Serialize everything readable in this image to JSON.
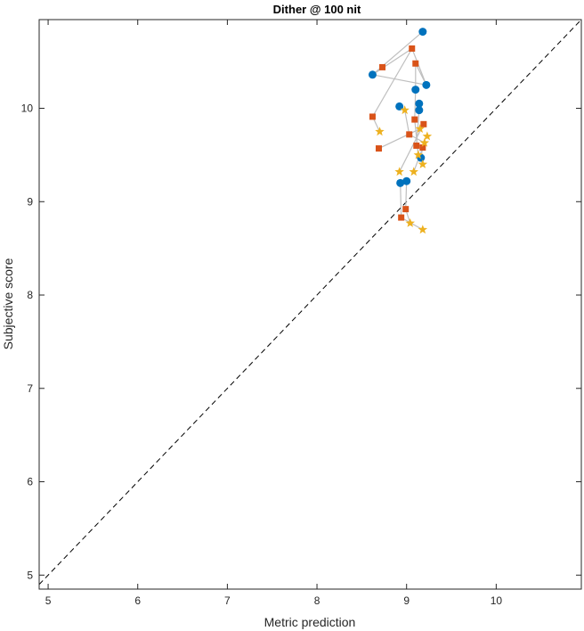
{
  "chart_data": {
    "type": "scatter",
    "title": "Dither @ 100 nit",
    "xlabel": "Metric prediction",
    "ylabel": "Subjective score",
    "xlim": [
      4.9,
      10.95
    ],
    "ylim": [
      4.85,
      10.95
    ],
    "xticks": [
      5,
      6,
      7,
      8,
      9,
      10
    ],
    "yticks": [
      5,
      6,
      7,
      8,
      9,
      10
    ],
    "grid": false,
    "legend": "none",
    "reference_line": {
      "style": "dashed",
      "color": "#000000",
      "from": [
        4.9,
        4.9
      ],
      "to": [
        10.95,
        10.95
      ]
    },
    "series": [
      {
        "marker": "circle",
        "color": "#0072BD",
        "points": [
          [
            9.18,
            10.82
          ],
          [
            8.62,
            10.36
          ],
          [
            9.22,
            10.25
          ],
          [
            9.1,
            10.2
          ],
          [
            9.14,
            10.05
          ],
          [
            8.92,
            10.02
          ],
          [
            9.14,
            9.98
          ],
          [
            9.16,
            9.47
          ],
          [
            9.0,
            9.22
          ],
          [
            8.93,
            9.2
          ]
        ]
      },
      {
        "marker": "square",
        "color": "#D95319",
        "points": [
          [
            9.06,
            10.64
          ],
          [
            9.1,
            10.48
          ],
          [
            8.73,
            10.44
          ],
          [
            8.62,
            9.91
          ],
          [
            9.09,
            9.88
          ],
          [
            9.19,
            9.83
          ],
          [
            9.03,
            9.72
          ],
          [
            9.11,
            9.6
          ],
          [
            9.18,
            9.58
          ],
          [
            8.69,
            9.57
          ],
          [
            8.99,
            8.92
          ],
          [
            8.94,
            8.83
          ]
        ]
      },
      {
        "marker": "star",
        "color": "#EDB120",
        "points": [
          [
            8.98,
            9.98
          ],
          [
            9.15,
            9.78
          ],
          [
            8.7,
            9.75
          ],
          [
            9.23,
            9.7
          ],
          [
            9.2,
            9.63
          ],
          [
            9.13,
            9.5
          ],
          [
            9.18,
            9.4
          ],
          [
            8.92,
            9.32
          ],
          [
            9.08,
            9.32
          ],
          [
            9.04,
            8.77
          ],
          [
            9.18,
            8.7
          ]
        ]
      }
    ],
    "connections": {
      "color": "#bfbfbf",
      "groups": [
        [
          0,
          0,
          0,
          1,
          0,
          2,
          1,
          0
        ],
        [
          0,
          1,
          1,
          0,
          1,
          3,
          2,
          2
        ],
        [
          0,
          2,
          1,
          1,
          0,
          3
        ],
        [
          0,
          3,
          1,
          4,
          2,
          5
        ],
        [
          0,
          5,
          2,
          0,
          1,
          6,
          2,
          4
        ],
        [
          0,
          6,
          1,
          7,
          2,
          6
        ],
        [
          0,
          7,
          1,
          8,
          2,
          8
        ],
        [
          0,
          8,
          1,
          10,
          2,
          9
        ],
        [
          0,
          9,
          1,
          11,
          2,
          10
        ],
        [
          1,
          5,
          2,
          7
        ],
        [
          1,
          9,
          2,
          1
        ]
      ]
    }
  }
}
